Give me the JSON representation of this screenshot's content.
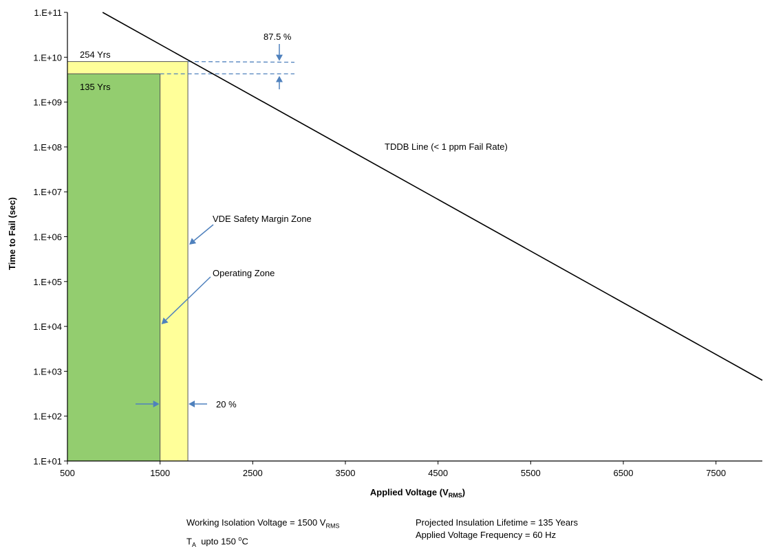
{
  "chart_data": {
    "type": "line",
    "xlabel": {
      "main": "Applied Voltage (V",
      "sub": "RMS",
      "close": ")"
    },
    "ylabel": "Time to Fail (sec)",
    "x_scale": "linear",
    "y_scale": "log",
    "xlim": [
      500,
      8000
    ],
    "ylim": [
      10,
      100000000000
    ],
    "x_ticks": [
      "500",
      "1500",
      "2500",
      "3500",
      "4500",
      "5500",
      "6500",
      "7500"
    ],
    "x_tick_values": [
      500,
      1500,
      2500,
      3500,
      4500,
      5500,
      6500,
      7500
    ],
    "y_ticks": [
      "1.E+01",
      "1.E+02",
      "1.E+03",
      "1.E+04",
      "1.E+05",
      "1.E+06",
      "1.E+07",
      "1.E+08",
      "1.E+09",
      "1.E+10",
      "1.E+11"
    ],
    "y_tick_values": [
      10.0,
      100.0,
      1000.0,
      10000.0,
      100000.0,
      1000000.0,
      10000000.0,
      100000000.0,
      1000000000.0,
      10000000000.0,
      100000000000.0
    ],
    "grid": false,
    "series": [
      {
        "name": "TDDB Line (< 1 ppm Fail Rate)",
        "color": "#000000",
        "points": [
          [
            880,
            100000000000
          ],
          [
            8000,
            630
          ]
        ]
      }
    ],
    "regions": [
      {
        "label": "Operating  Zone",
        "x_range": [
          500,
          1500
        ],
        "y_top": 4260000000,
        "color": "#93cd6f"
      },
      {
        "label": "VDE Safety Margin Zone",
        "x_range": [
          1500,
          1800
        ],
        "y_top": 8010000000,
        "color": "#ffff99"
      }
    ],
    "annotations": {
      "yrs_upper": "254 Yrs",
      "yrs_lower": "135 Yrs",
      "percent_top": "87.5 %",
      "percent_bottom": "20 %",
      "line_label": "TDDB Line (< 1 ppm Fail Rate)",
      "vde_label": "VDE Safety Margin Zone",
      "operating_label": "Operating  Zone"
    },
    "colors": {
      "arrow": "#4f81bd",
      "border": "#000000"
    }
  },
  "footer": {
    "working_voltage": {
      "text": "Working Isolation Voltage = 1500 V",
      "sub": "RMS"
    },
    "ta": {
      "prefix": "T",
      "sub": "A",
      "mid": "  upto 150 ",
      "sup": "o",
      "suffix": "C"
    },
    "lifetime": "Projected Insulation Lifetime = 135 Years",
    "frequency": "Applied Voltage Frequency = 60 Hz"
  }
}
